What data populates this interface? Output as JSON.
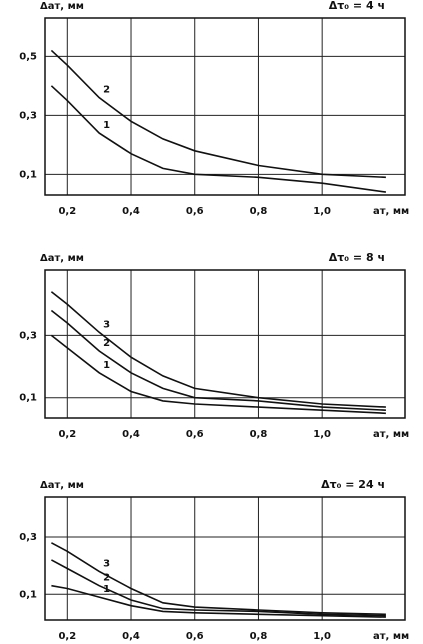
{
  "chart_data": [
    {
      "type": "line",
      "title": "Δτ₀ = 4 ч",
      "y_label": "Δaт, мм",
      "x_label": "aт, мм",
      "x": [
        0.15,
        0.2,
        0.3,
        0.4,
        0.5,
        0.6,
        0.8,
        1.0,
        1.2
      ],
      "series": [
        {
          "name": "1",
          "color": "#111111",
          "values": [
            0.4,
            0.35,
            0.24,
            0.17,
            0.12,
            0.1,
            0.09,
            0.07,
            0.04
          ]
        },
        {
          "name": "2",
          "color": "#111111",
          "values": [
            0.52,
            0.47,
            0.36,
            0.28,
            0.22,
            0.18,
            0.13,
            0.1,
            0.09
          ]
        }
      ],
      "xlim": [
        0.13,
        1.26
      ],
      "ylim": [
        0.03,
        0.63
      ],
      "xticks": [
        {
          "value": 0.2,
          "label": "0,2"
        },
        {
          "value": 0.4,
          "label": "0,4"
        },
        {
          "value": 0.6,
          "label": "0,6"
        },
        {
          "value": 0.8,
          "label": "0,8"
        },
        {
          "value": 1.0,
          "label": "1,0"
        }
      ],
      "yticks": [
        {
          "value": 0.5,
          "label": "0,5"
        },
        {
          "value": 0.3,
          "label": "0,3"
        },
        {
          "value": 0.1,
          "label": "0,1"
        }
      ],
      "grid": true
    },
    {
      "type": "line",
      "title": "Δτ₀ = 8 ч",
      "y_label": "Δaт, мм",
      "x_label": "aт, мм",
      "x": [
        0.15,
        0.2,
        0.3,
        0.4,
        0.5,
        0.6,
        0.8,
        1.0,
        1.2
      ],
      "series": [
        {
          "name": "1",
          "color": "#111111",
          "values": [
            0.3,
            0.26,
            0.18,
            0.12,
            0.09,
            0.08,
            0.07,
            0.06,
            0.05
          ]
        },
        {
          "name": "2",
          "color": "#111111",
          "values": [
            0.38,
            0.34,
            0.25,
            0.18,
            0.13,
            0.1,
            0.09,
            0.07,
            0.06
          ]
        },
        {
          "name": "3",
          "color": "#111111",
          "values": [
            0.44,
            0.4,
            0.31,
            0.23,
            0.17,
            0.13,
            0.1,
            0.08,
            0.07
          ]
        }
      ],
      "xlim": [
        0.13,
        1.26
      ],
      "ylim": [
        0.035,
        0.51
      ],
      "xticks": [
        {
          "value": 0.2,
          "label": "0,2"
        },
        {
          "value": 0.4,
          "label": "0,4"
        },
        {
          "value": 0.6,
          "label": "0,6"
        },
        {
          "value": 0.8,
          "label": "0,8"
        },
        {
          "value": 1.0,
          "label": "1,0"
        }
      ],
      "yticks": [
        {
          "value": 0.3,
          "label": "0,3"
        },
        {
          "value": 0.1,
          "label": "0,1"
        }
      ],
      "grid": true
    },
    {
      "type": "line",
      "title": "Δτ₀ = 24 ч",
      "y_label": "Δaт, мм",
      "x_label": "aт, мм",
      "x": [
        0.15,
        0.2,
        0.3,
        0.4,
        0.5,
        0.6,
        0.8,
        1.0,
        1.2
      ],
      "series": [
        {
          "name": "1",
          "color": "#111111",
          "values": [
            0.13,
            0.12,
            0.09,
            0.06,
            0.04,
            0.035,
            0.03,
            0.025,
            0.02
          ]
        },
        {
          "name": "2",
          "color": "#111111",
          "values": [
            0.22,
            0.19,
            0.13,
            0.08,
            0.05,
            0.045,
            0.04,
            0.03,
            0.025
          ]
        },
        {
          "name": "3",
          "color": "#111111",
          "values": [
            0.28,
            0.25,
            0.18,
            0.12,
            0.07,
            0.055,
            0.045,
            0.035,
            0.03
          ]
        }
      ],
      "xlim": [
        0.13,
        1.26
      ],
      "ylim": [
        0.01,
        0.44
      ],
      "xticks": [
        {
          "value": 0.2,
          "label": "0,2"
        },
        {
          "value": 0.4,
          "label": "0,4"
        },
        {
          "value": 0.6,
          "label": "0,6"
        },
        {
          "value": 0.8,
          "label": "0,8"
        },
        {
          "value": 1.0,
          "label": "1,0"
        }
      ],
      "yticks": [
        {
          "value": 0.3,
          "label": "0,3"
        },
        {
          "value": 0.1,
          "label": "0,1"
        }
      ],
      "grid": true
    }
  ]
}
